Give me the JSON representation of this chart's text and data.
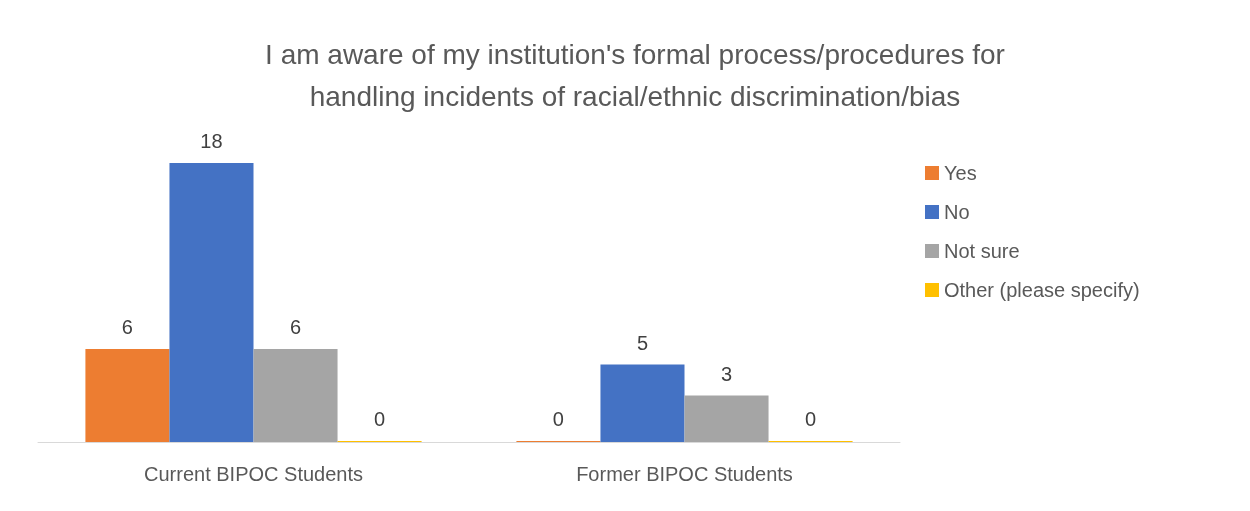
{
  "chart_data": {
    "type": "bar",
    "title": "I am aware of my institution's formal process/procedures for\nhandling incidents of racial/ethnic discrimination/bias",
    "categories": [
      "Current BIPOC Students",
      "Former BIPOC Students"
    ],
    "series": [
      {
        "name": "Yes",
        "color": "#ed7d31",
        "values": [
          6,
          0
        ]
      },
      {
        "name": "No",
        "color": "#4472c4",
        "values": [
          18,
          5
        ]
      },
      {
        "name": "Not sure",
        "color": "#a5a5a5",
        "values": [
          6,
          3
        ]
      },
      {
        "name": "Other (please specify)",
        "color": "#ffc000",
        "values": [
          0,
          0
        ]
      }
    ],
    "data_labels": true,
    "legend": "right"
  }
}
